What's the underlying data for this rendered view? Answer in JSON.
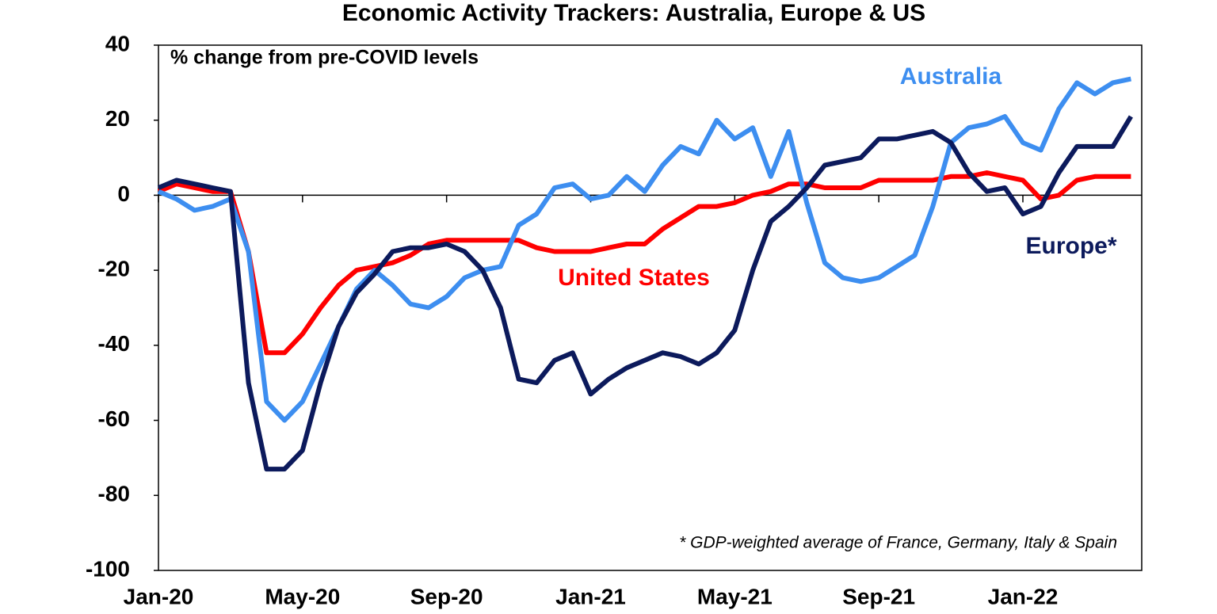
{
  "chart_data": {
    "type": "line",
    "title": "Economic Activity Trackers: Australia, Europe & US",
    "subtitle": "% change from pre-COVID levels",
    "annotation": "* GDP-weighted average of France, Germany, Italy & Spain",
    "x": [
      0,
      0.5,
      1,
      1.5,
      2,
      2.5,
      3,
      3.5,
      4,
      4.5,
      5,
      5.5,
      6,
      6.5,
      7,
      7.5,
      8,
      8.5,
      9,
      9.5,
      10,
      10.5,
      11,
      11.5,
      12,
      12.5,
      13,
      13.5,
      14,
      14.5,
      15,
      15.5,
      16,
      16.5,
      17,
      17.5,
      18,
      18.5,
      19,
      19.5,
      20,
      20.5,
      21,
      21.5,
      22,
      22.5,
      23,
      23.5,
      24,
      24.5,
      25,
      25.5,
      26,
      26.5,
      27
    ],
    "xlim": [
      0,
      27.3
    ],
    "xticks": [
      {
        "value": 0,
        "label": "Jan-20"
      },
      {
        "value": 4,
        "label": "May-20"
      },
      {
        "value": 8,
        "label": "Sep-20"
      },
      {
        "value": 12,
        "label": "Jan-21"
      },
      {
        "value": 16,
        "label": "May-21"
      },
      {
        "value": 20,
        "label": "Sep-21"
      },
      {
        "value": 24,
        "label": "Jan-22"
      }
    ],
    "ylim": [
      -100,
      40
    ],
    "yticks": [
      -100,
      -80,
      -60,
      -40,
      -20,
      0,
      20,
      40
    ],
    "series": [
      {
        "name": "United States",
        "color": "#ff0000",
        "values": [
          1,
          3,
          2,
          1,
          1,
          -15,
          -42,
          -42,
          -37,
          -30,
          -24,
          -20,
          -19,
          -18,
          -16,
          -13,
          -12,
          -12,
          -12,
          -12,
          -12,
          -14,
          -15,
          -15,
          -15,
          -14,
          -13,
          -13,
          -9,
          -6,
          -3,
          -3,
          -2,
          0,
          1,
          3,
          3,
          2,
          2,
          2,
          4,
          4,
          4,
          4,
          5,
          5,
          6,
          5,
          4,
          -1,
          0,
          4,
          5,
          5,
          5
        ]
      },
      {
        "name": "Australia",
        "color": "#3d8ef0",
        "values": [
          1,
          -1,
          -4,
          -3,
          -1,
          -15,
          -55,
          -60,
          -55,
          -45,
          -35,
          -25,
          -20,
          -24,
          -29,
          -30,
          -27,
          -22,
          -20,
          -19,
          -8,
          -5,
          2,
          3,
          -1,
          0,
          5,
          1,
          8,
          13,
          11,
          20,
          15,
          18,
          5,
          17,
          -2,
          -18,
          -22,
          -23,
          -22,
          -19,
          -16,
          -3,
          14,
          18,
          19,
          21,
          14,
          12,
          23,
          30,
          27,
          30,
          31
        ]
      },
      {
        "name": "Europe*",
        "color": "#0c1a5c",
        "values": [
          2,
          4,
          3,
          2,
          1,
          -50,
          -73,
          -73,
          -68,
          -50,
          -35,
          -26,
          -21,
          -15,
          -14,
          -14,
          -13,
          -15,
          -20,
          -30,
          -49,
          -50,
          -44,
          -42,
          -53,
          -49,
          -46,
          -44,
          -42,
          -43,
          -45,
          -42,
          -36,
          -20,
          -7,
          -3,
          2,
          8,
          9,
          10,
          15,
          15,
          16,
          17,
          14,
          6,
          1,
          2,
          -5,
          -3,
          6,
          13,
          13,
          13,
          21
        ]
      }
    ]
  }
}
